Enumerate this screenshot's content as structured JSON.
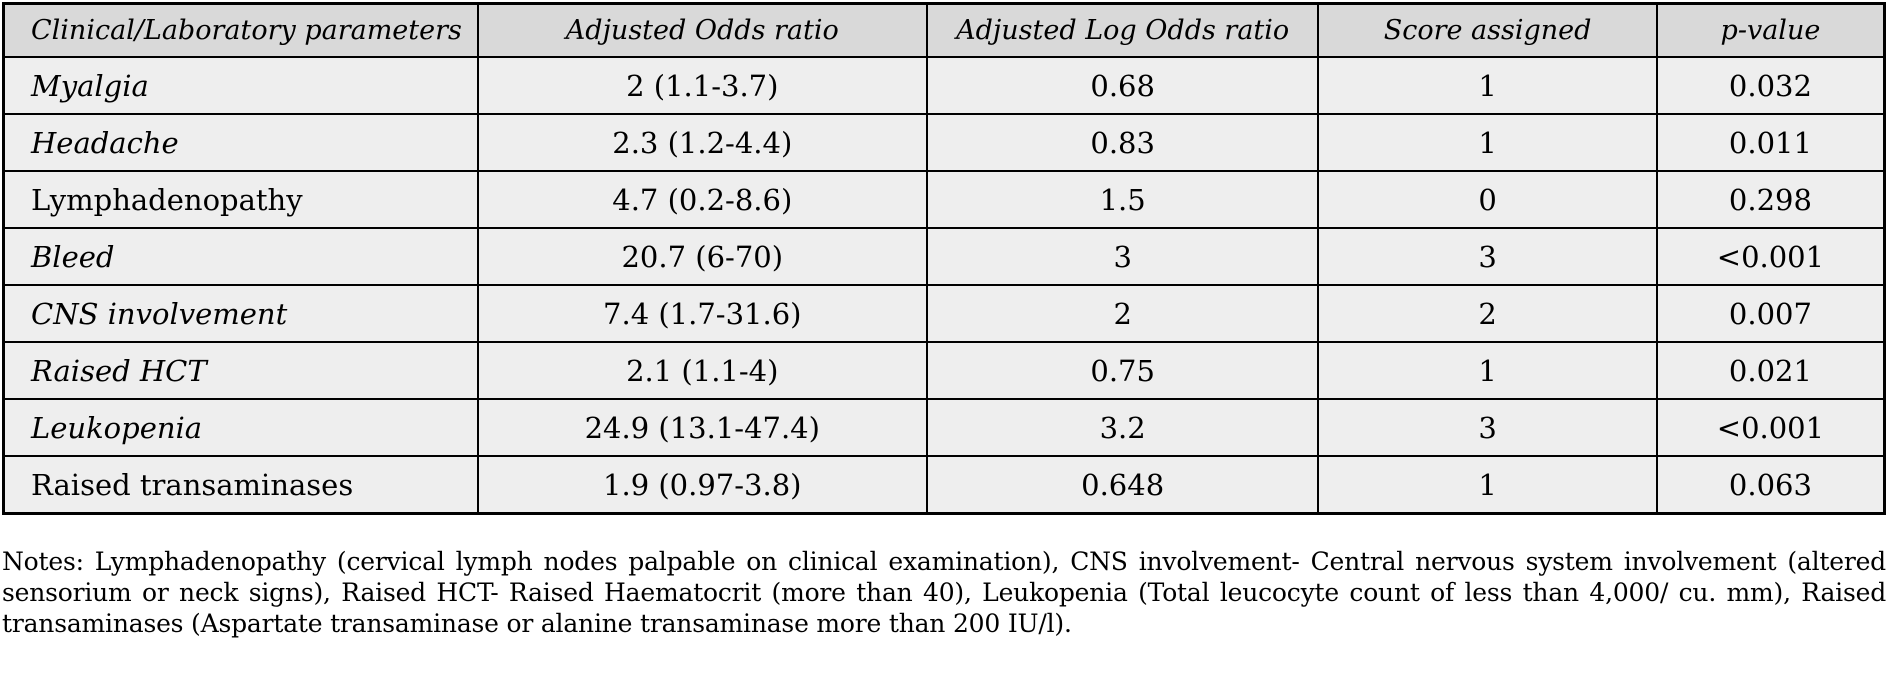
{
  "colors": {
    "header_bg": "#d9d9d9",
    "cell_bg": "#eeeeee",
    "border": "#000000",
    "text": "#000000",
    "page_bg": "#ffffff"
  },
  "table": {
    "columns": [
      {
        "label": "Clinical/Laboratory parameters"
      },
      {
        "label": "Adjusted Odds ratio"
      },
      {
        "label": "Adjusted Log Odds ratio"
      },
      {
        "label": "Score assigned"
      },
      {
        "label": "p-value"
      }
    ],
    "rows": [
      {
        "parameter": "Myalgia",
        "italic": true,
        "adjusted_odds_ratio": "2 (1.1-3.7)",
        "adjusted_log_odds_ratio": "0.68",
        "score_assigned": "1",
        "p_value": "0.032"
      },
      {
        "parameter": "Headache",
        "italic": true,
        "adjusted_odds_ratio": "2.3 (1.2-4.4)",
        "adjusted_log_odds_ratio": "0.83",
        "score_assigned": "1",
        "p_value": "0.011"
      },
      {
        "parameter": "Lymphadenopathy",
        "italic": false,
        "adjusted_odds_ratio": "4.7 (0.2-8.6)",
        "adjusted_log_odds_ratio": "1.5",
        "score_assigned": "0",
        "p_value": "0.298"
      },
      {
        "parameter": "Bleed",
        "italic": true,
        "adjusted_odds_ratio": "20.7 (6-70)",
        "adjusted_log_odds_ratio": "3",
        "score_assigned": "3",
        "p_value": "<0.001"
      },
      {
        "parameter": "CNS involvement",
        "italic": true,
        "adjusted_odds_ratio": "7.4 (1.7-31.6)",
        "adjusted_log_odds_ratio": "2",
        "score_assigned": "2",
        "p_value": "0.007"
      },
      {
        "parameter": "Raised HCT",
        "italic": true,
        "adjusted_odds_ratio": "2.1 (1.1-4)",
        "adjusted_log_odds_ratio": "0.75",
        "score_assigned": "1",
        "p_value": "0.021"
      },
      {
        "parameter": "Leukopenia",
        "italic": true,
        "adjusted_odds_ratio": "24.9 (13.1-47.4)",
        "adjusted_log_odds_ratio": "3.2",
        "score_assigned": "3",
        "p_value": "<0.001"
      },
      {
        "parameter": "Raised transaminases",
        "italic": false,
        "adjusted_odds_ratio": "1.9 (0.97-3.8)",
        "adjusted_log_odds_ratio": "0.648",
        "score_assigned": "1",
        "p_value": "0.063"
      }
    ]
  },
  "notes": {
    "text": "Notes: Lymphadenopathy (cervical lymph nodes palpable on clinical examination), CNS involvement- Central nervous system involvement (altered sensorium or neck signs), Raised HCT- Raised Haematocrit (more than 40), Leukopenia (Total leucocyte count of less than 4,000/ cu. mm), Raised transaminases (Aspartate transaminase or alanine transaminase more than 200 IU/l)."
  }
}
